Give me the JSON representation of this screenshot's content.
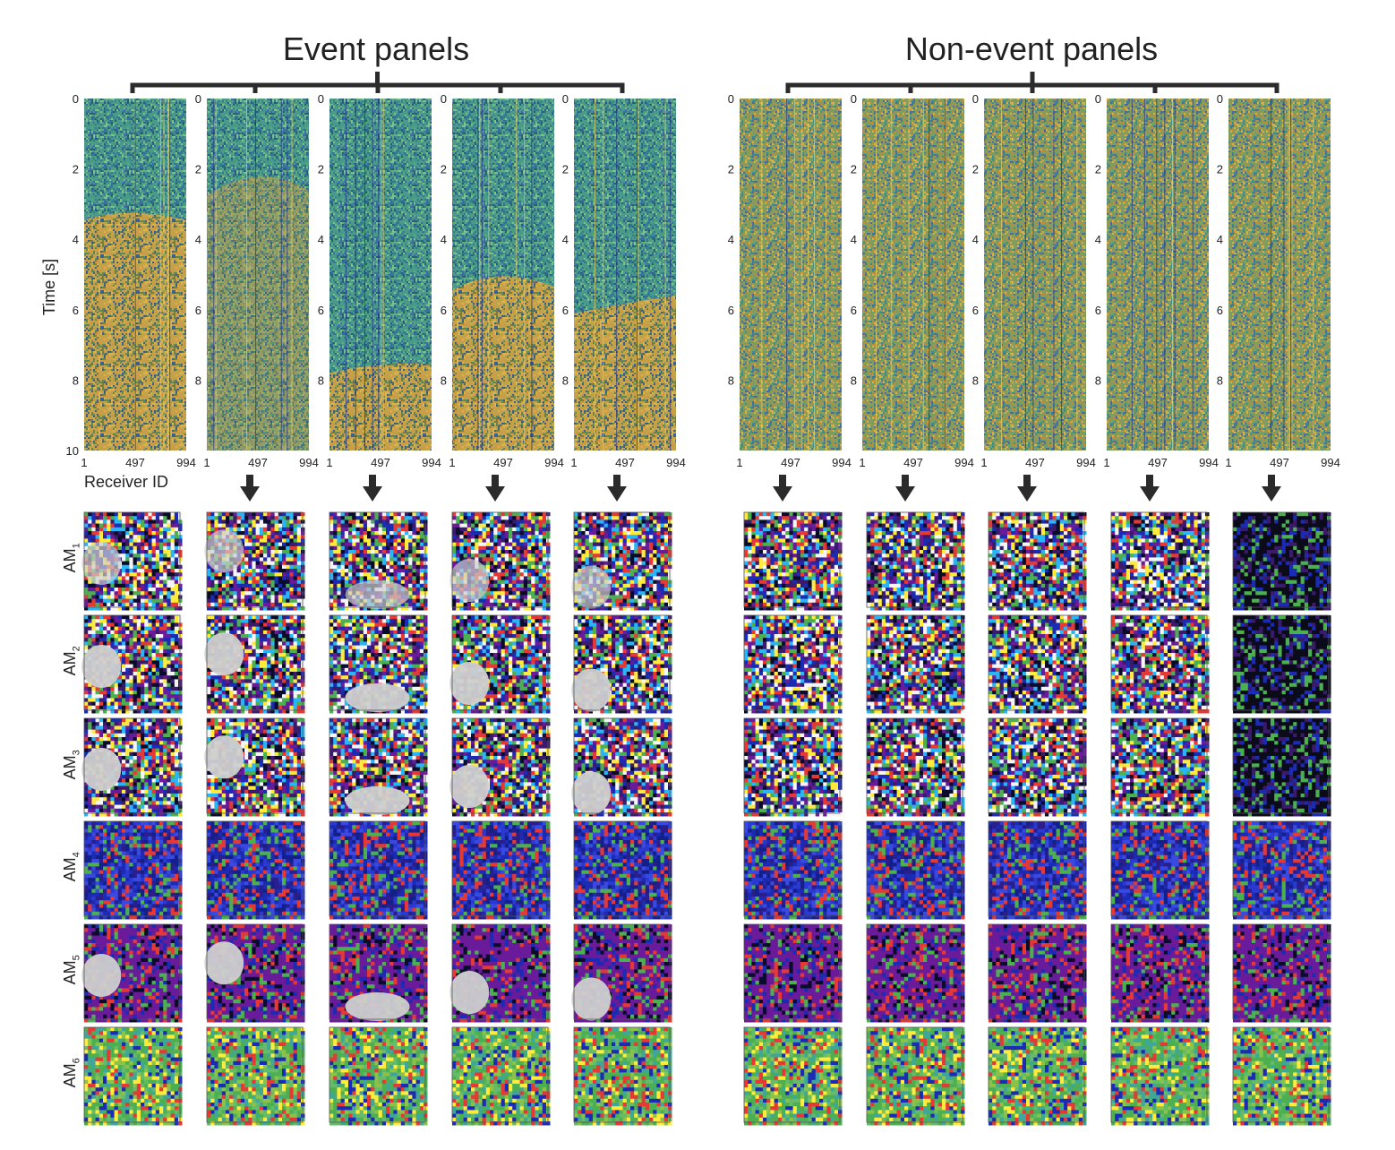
{
  "figure": {
    "groups": [
      {
        "title": "Event panels"
      },
      {
        "title": "Non-event panels"
      }
    ],
    "axis": {
      "ylabel": "Time [s]",
      "xlabel": "Receiver ID",
      "yticks": [
        "0",
        "2",
        "4",
        "6",
        "8",
        "10"
      ],
      "xticks": [
        "1",
        "497",
        "994"
      ]
    },
    "panels": [
      {
        "group": "event",
        "onset_s": 3.3,
        "onset_curve": "flat-left"
      },
      {
        "group": "event",
        "onset_s": 2.0,
        "onset_curve": "weak"
      },
      {
        "group": "event",
        "onset_s": 7.6,
        "onset_curve": "late"
      },
      {
        "group": "event",
        "onset_s": 5.1,
        "onset_curve": "arched"
      },
      {
        "group": "event",
        "onset_s": 5.8,
        "onset_curve": "right"
      },
      {
        "group": "non-event"
      },
      {
        "group": "non-event"
      },
      {
        "group": "non-event"
      },
      {
        "group": "non-event"
      },
      {
        "group": "non-event"
      }
    ],
    "activation_rows": [
      {
        "label": "AM",
        "sub": "1"
      },
      {
        "label": "AM",
        "sub": "2"
      },
      {
        "label": "AM",
        "sub": "3"
      },
      {
        "label": "AM",
        "sub": "4"
      },
      {
        "label": "AM",
        "sub": "5"
      },
      {
        "label": "AM",
        "sub": "6"
      }
    ],
    "colors": {
      "seismic_bg": "#4a9a8a",
      "seismic_event": "#c9a24a",
      "bracket": "#2b2b2b",
      "arrow": "#2b2b2b",
      "am_blob": "#cfcfcf",
      "am_purple": "#6a1b9a",
      "am_blue": "#1c2bb3",
      "am_green": "#4caf50"
    }
  }
}
